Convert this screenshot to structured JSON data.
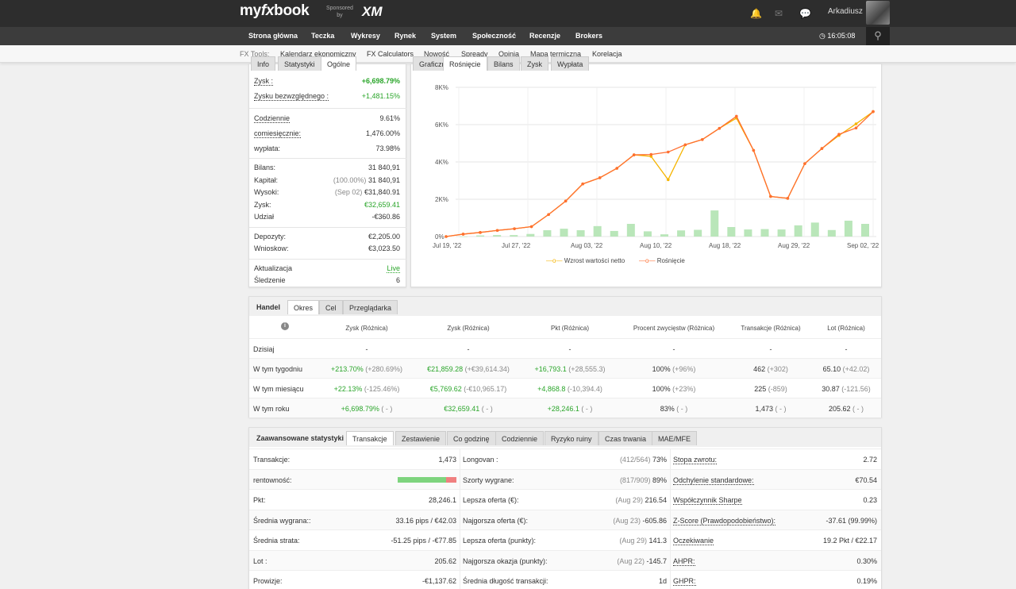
{
  "header": {
    "logo_main": "my",
    "logo_fx": "fx",
    "logo_end": "book",
    "sponsored_line1": "Sponsored",
    "sponsored_line2": "by",
    "sponsor_logo": "XM",
    "username": "Arkadiusz",
    "icons": [
      "bell-icon",
      "mail-icon",
      "chat-icon"
    ]
  },
  "nav": {
    "items": [
      "Strona główna",
      "Teczka",
      "Wykresy",
      "Rynek",
      "System",
      "Społeczność",
      "Recenzje",
      "Brokers"
    ],
    "time": "16:05:08"
  },
  "subnav": {
    "label": "FX Tools:",
    "items": [
      "Kalendarz ekonomiczny",
      "FX Calculators",
      "Nowość",
      "Spready",
      "Opinia",
      "Mapa termiczna",
      "Korelacja"
    ]
  },
  "info_panel": {
    "tabs": [
      "Info",
      "Statystyki",
      "Ogólne"
    ],
    "rows": [
      {
        "label": "Zysk :",
        "value": "+6,698.79%"
      },
      {
        "label": "Zysku bezwzględnego :",
        "value": "+1,481.15%"
      },
      {
        "label": "Codziennie",
        "value": "9.61%"
      },
      {
        "label": "comiesięcznie:",
        "value": "1,476.00%"
      },
      {
        "label": "wypłata:",
        "value": "73.98%"
      },
      {
        "label": "Bilans:",
        "value": "31 840,91"
      },
      {
        "label": "Kapitał:",
        "prefix": "(100.00%)",
        "value": "31 840,91"
      },
      {
        "label": "Wysoki:",
        "prefix": "(Sep 02)",
        "value": "€31,840.91"
      },
      {
        "label": "Zysk:",
        "value": "€32,659.41"
      },
      {
        "label": "Udział",
        "value": "-€360.86"
      },
      {
        "label": "Depozyty:",
        "value": "€2,205.00"
      },
      {
        "label": "Wnioskow:",
        "value": "€3,023.50"
      },
      {
        "label": "Aktualizacja",
        "value": "Live"
      },
      {
        "label": "Śledzenie",
        "value": "6"
      }
    ]
  },
  "chart_panel": {
    "tabs": [
      "Graficzny",
      "Rośnięcie",
      "Bilans",
      "Zysk",
      "Wypłata"
    ],
    "legend": [
      "Wzrost wartości netto",
      "Rośnięcie"
    ]
  },
  "chart_data": {
    "type": "line",
    "y_ticks": [
      "0%",
      "2K%",
      "4K%",
      "6K%",
      "8K%"
    ],
    "ylim": [
      0,
      8000
    ],
    "x_ticks": [
      "Jul 19, '22",
      "Jul 27, '22",
      "Aug 03, '22",
      "Aug 10, '22",
      "Aug 18, '22",
      "Aug 29, '22",
      "Sep 02, '22"
    ],
    "series": [
      {
        "name": "Rośnięcie",
        "color": "#ff6f31",
        "values": [
          0,
          130,
          220,
          330,
          420,
          530,
          1180,
          1900,
          2820,
          3150,
          3660,
          4380,
          4400,
          4530,
          4920,
          5200,
          5800,
          6450,
          4620,
          2150,
          2050,
          3910,
          4720,
          5480,
          5820,
          6698
        ]
      },
      {
        "name": "Wzrost wartości netto",
        "color": "#f5b400",
        "values": [
          0,
          130,
          220,
          330,
          420,
          530,
          1180,
          1900,
          2820,
          3150,
          3660,
          4380,
          4300,
          3050,
          4920,
          5200,
          5800,
          6350,
          4620,
          2150,
          2050,
          3910,
          4720,
          5420,
          6040,
          6698
        ]
      }
    ],
    "bars": {
      "name": "Zysk",
      "color": "#b9e6b9",
      "values": [
        0,
        60,
        80,
        80,
        140,
        340,
        420,
        340,
        560,
        300,
        680,
        280,
        120,
        330,
        360,
        1400,
        510,
        380,
        400,
        380,
        600,
        750,
        350,
        850,
        680
      ]
    }
  },
  "trade_panel": {
    "tabs": [
      "Handel",
      "Okres",
      "Cel",
      "Przeglądarka"
    ],
    "headers": [
      "Zysk (Różnica)",
      "Zysk (Różnica)",
      "Pkt (Różnica)",
      "Procent zwycięstw (Różnica)",
      "Transakcje (Różnica)",
      "Lot (Różnica)"
    ],
    "rows": [
      {
        "label": "Dzisiaj",
        "cells": [
          [
            "-",
            ""
          ],
          [
            "-",
            ""
          ],
          [
            "-",
            ""
          ],
          [
            "-",
            ""
          ],
          [
            "-",
            ""
          ],
          [
            "-",
            ""
          ]
        ]
      },
      {
        "label": "W tym tygodniu",
        "cells": [
          [
            "+213.70%",
            "(+280.69%)"
          ],
          [
            "€21,859.28",
            "(+€39,614.34)"
          ],
          [
            "+16,793.1",
            "(+28,555.3)"
          ],
          [
            "100%",
            "(+96%)"
          ],
          [
            "462",
            "(+302)"
          ],
          [
            "65.10",
            "(+42.02)"
          ]
        ]
      },
      {
        "label": "W tym miesiącu",
        "cells": [
          [
            "+22.13%",
            "(-125.46%)"
          ],
          [
            "€5,769.62",
            "(-€10,965.17)"
          ],
          [
            "+4,868.8",
            "(-10,394.4)"
          ],
          [
            "100%",
            "(+23%)"
          ],
          [
            "225",
            "(-859)"
          ],
          [
            "30.87",
            "(-121.56)"
          ]
        ]
      },
      {
        "label": "W tym roku",
        "cells": [
          [
            "+6,698.79%",
            "( - )"
          ],
          [
            "€32,659.41",
            "( - )"
          ],
          [
            "+28,246.1",
            "( - )"
          ],
          [
            "83%",
            "( - )"
          ],
          [
            "1,473",
            "( - )"
          ],
          [
            "205.62",
            "( - )"
          ]
        ]
      }
    ]
  },
  "stats_panel": {
    "title": "Zaawansowane statystyki",
    "tabs": [
      "Transakcje",
      "Zestawienie",
      "Co godzinę",
      "Codziennie",
      "Ryzyko ruiny",
      "Czas trwania",
      "MAE/MFE"
    ],
    "col1": [
      {
        "label": "Transakcje:",
        "value": "1,473"
      },
      {
        "label": "rentowność:",
        "value": ""
      },
      {
        "label": "Pkt:",
        "value": "28,246.1"
      },
      {
        "label": "Średnia wygrana::",
        "value": "33.16 pips / €42.03"
      },
      {
        "label": "Średnia strata:",
        "value": "-51.25 pips / -€77.85"
      },
      {
        "label": "Lot :",
        "value": "205.62"
      },
      {
        "label": "Prowizje:",
        "value": "-€1,137.62"
      }
    ],
    "col2": [
      {
        "label": "Longovan :",
        "prefix": "(412/564)",
        "value": "73%"
      },
      {
        "label": "Szorty wygrane:",
        "prefix": "(817/909)",
        "value": "89%"
      },
      {
        "label": "Lepsza oferta (€):",
        "prefix": "(Aug 29)",
        "value": "216.54"
      },
      {
        "label": "Najgorsza oferta (€):",
        "prefix": "(Aug 23)",
        "value": "-605.86"
      },
      {
        "label": "Lepsza oferta (punkty):",
        "prefix": "(Aug 29)",
        "value": "141.3"
      },
      {
        "label": "Najgorsza okazja (punkty):",
        "prefix": "(Aug 22)",
        "value": "-145.7"
      },
      {
        "label": "Średnia długość transakcji:",
        "prefix": "",
        "value": "1d"
      }
    ],
    "col3": [
      {
        "label": "Stopa zwrotu:",
        "value": "2.72"
      },
      {
        "label": "Odchylenie standardowe:",
        "value": "€70.54"
      },
      {
        "label": "Współczynnik Sharpe",
        "value": "0.23"
      },
      {
        "label": "Z-Score (Prawdopodobieństwo):",
        "value": "-37.61 (99.99%)"
      },
      {
        "label": "Oczekiwanie",
        "value": "19.2 Pkt / €22.17"
      },
      {
        "label": "AHPR:",
        "value": "0.30%"
      },
      {
        "label": "GHPR:",
        "value": "0.19%"
      }
    ],
    "profitability": {
      "win_fraction": 0.83,
      "win_color": "#7ed47e",
      "loss_color": "#f08080"
    }
  }
}
